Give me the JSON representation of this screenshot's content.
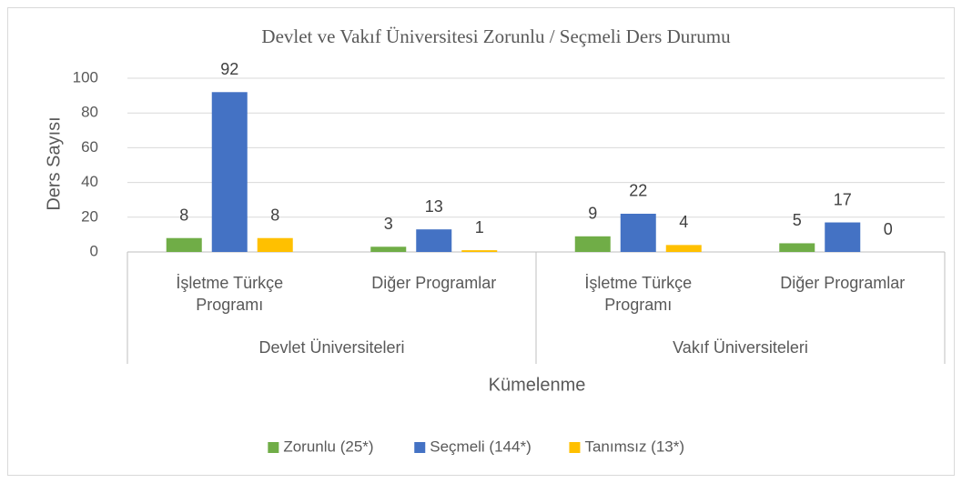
{
  "chart_data": {
    "type": "bar",
    "title": "Devlet ve Vakıf Üniversitesi Zorunlu / Seçmeli Ders Durumu",
    "x_label": "Kümelenme",
    "y_label": "Ders Sayısı",
    "categories": [
      "İşletme Türkçe Programı",
      "Diğer Programlar",
      "İşletme Türkçe Programı",
      "Diğer Programlar"
    ],
    "category_groups": [
      "Devlet Üniversiteleri",
      "Vakıf Üniversiteleri"
    ],
    "series": [
      {
        "name": "Zorunlu (25*)",
        "color": "#70ad47",
        "values": [
          8,
          3,
          9,
          5
        ]
      },
      {
        "name": "Seçmeli (144*)",
        "color": "#4472c4",
        "values": [
          92,
          13,
          22,
          17
        ]
      },
      {
        "name": "Tanımsız (13*)",
        "color": "#ffc000",
        "values": [
          8,
          1,
          4,
          0
        ]
      }
    ],
    "ylim": [
      0,
      100
    ],
    "yticks": [
      0,
      20,
      40,
      60,
      80,
      100
    ],
    "grid": true,
    "legend": "bottom"
  }
}
